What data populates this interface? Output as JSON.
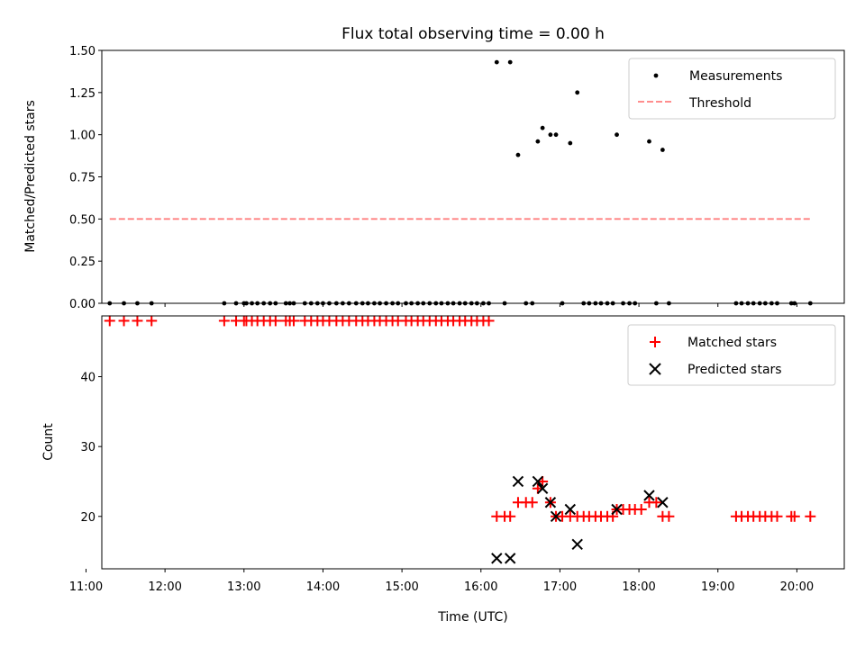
{
  "chart_data": [
    {
      "type": "scatter",
      "title": "Flux total observing time = 0.00 h",
      "xlabel": "",
      "ylabel": "Matched/Predicted stars",
      "xlim": [
        11.2,
        20.6
      ],
      "ylim": [
        0,
        1.5
      ],
      "yticks": [
        "0.00",
        "0.25",
        "0.50",
        "0.75",
        "1.00",
        "1.25",
        "1.50"
      ],
      "legend_position": "top-right",
      "series": [
        {
          "name": "Measurements",
          "style": "dot",
          "color": "#000000",
          "x": [
            11.3,
            11.48,
            11.65,
            11.83,
            12.75,
            12.9,
            13.0,
            13.03,
            13.1,
            13.17,
            13.25,
            13.33,
            13.4,
            13.53,
            13.58,
            13.63,
            13.77,
            13.85,
            13.93,
            14.0,
            14.08,
            14.17,
            14.25,
            14.33,
            14.42,
            14.5,
            14.57,
            14.65,
            14.72,
            14.8,
            14.88,
            14.95,
            15.05,
            15.12,
            15.2,
            15.27,
            15.35,
            15.43,
            15.5,
            15.58,
            15.65,
            15.73,
            15.8,
            15.88,
            15.95,
            16.03,
            16.1,
            16.2,
            16.3,
            16.37,
            16.47,
            16.57,
            16.65,
            16.72,
            16.78,
            16.88,
            16.95,
            17.03,
            17.13,
            17.22,
            17.3,
            17.37,
            17.45,
            17.52,
            17.6,
            17.67,
            17.72,
            17.8,
            17.88,
            17.95,
            18.13,
            18.22,
            18.3,
            18.38,
            19.23,
            19.3,
            19.38,
            19.45,
            19.53,
            19.6,
            19.68,
            19.75,
            19.93,
            19.97,
            20.17
          ],
          "y": [
            0,
            0,
            0,
            0,
            0,
            0,
            0,
            0,
            0,
            0,
            0,
            0,
            0,
            0,
            0,
            0,
            0,
            0,
            0,
            0,
            0,
            0,
            0,
            0,
            0,
            0,
            0,
            0,
            0,
            0,
            0,
            0,
            0,
            0,
            0,
            0,
            0,
            0,
            0,
            0,
            0,
            0,
            0,
            0,
            0,
            0,
            0,
            1.43,
            0,
            1.43,
            0.88,
            0,
            0,
            0.96,
            1.04,
            1.0,
            1.0,
            0,
            0.95,
            1.25,
            0,
            0,
            0,
            0,
            0,
            0,
            1.0,
            0,
            0,
            0,
            0.96,
            0,
            0.91,
            0,
            0,
            0,
            0,
            0,
            0,
            0,
            0,
            0,
            0,
            0,
            0
          ]
        },
        {
          "name": "Threshold",
          "style": "dashed-line",
          "color": "#ff7f7f",
          "x": [
            11.3,
            20.17
          ],
          "y": [
            0.5,
            0.5
          ]
        }
      ]
    },
    {
      "type": "scatter",
      "title": "",
      "xlabel": "Time (UTC)",
      "ylabel": "Count",
      "xlim": [
        11.2,
        20.6
      ],
      "ylim": [
        12.5,
        48.7
      ],
      "yticks": [
        "20",
        "30",
        "40"
      ],
      "xticks": [
        "11:00",
        "12:00",
        "13:00",
        "14:00",
        "15:00",
        "16:00",
        "17:00",
        "18:00",
        "19:00",
        "20:00"
      ],
      "legend_position": "top-right",
      "series": [
        {
          "name": "Matched stars",
          "style": "plus",
          "color": "#ff0000",
          "x": [
            11.3,
            11.48,
            11.65,
            11.83,
            12.75,
            12.9,
            13.0,
            13.03,
            13.1,
            13.17,
            13.25,
            13.33,
            13.4,
            13.53,
            13.58,
            13.63,
            13.77,
            13.85,
            13.93,
            14.0,
            14.08,
            14.17,
            14.25,
            14.33,
            14.42,
            14.5,
            14.57,
            14.65,
            14.72,
            14.8,
            14.88,
            14.95,
            15.05,
            15.12,
            15.2,
            15.27,
            15.35,
            15.43,
            15.5,
            15.58,
            15.65,
            15.73,
            15.8,
            15.88,
            15.95,
            16.03,
            16.1,
            16.2,
            16.3,
            16.37,
            16.47,
            16.57,
            16.65,
            16.72,
            16.78,
            16.88,
            16.95,
            17.03,
            17.13,
            17.22,
            17.3,
            17.37,
            17.45,
            17.52,
            17.6,
            17.67,
            17.72,
            17.8,
            17.88,
            17.95,
            18.03,
            18.13,
            18.22,
            18.3,
            18.38,
            19.23,
            19.3,
            19.38,
            19.45,
            19.53,
            19.6,
            19.68,
            19.75,
            19.93,
            19.97,
            20.17
          ],
          "y": [
            48,
            48,
            48,
            48,
            48,
            48,
            48,
            48,
            48,
            48,
            48,
            48,
            48,
            48,
            48,
            48,
            48,
            48,
            48,
            48,
            48,
            48,
            48,
            48,
            48,
            48,
            48,
            48,
            48,
            48,
            48,
            48,
            48,
            48,
            48,
            48,
            48,
            48,
            48,
            48,
            48,
            48,
            48,
            48,
            48,
            48,
            48,
            20,
            20,
            20,
            22,
            22,
            22,
            24,
            25,
            22,
            20,
            20,
            20,
            20,
            20,
            20,
            20,
            20,
            20,
            20,
            21,
            21,
            21,
            21,
            21,
            22,
            22,
            20,
            20,
            20,
            20,
            20,
            20,
            20,
            20,
            20,
            20,
            20,
            20,
            20
          ]
        },
        {
          "name": "Predicted stars",
          "style": "x",
          "color": "#000000",
          "x": [
            16.2,
            16.37,
            16.47,
            16.72,
            16.78,
            16.88,
            16.95,
            17.13,
            17.22,
            17.72,
            18.13,
            18.3
          ],
          "y": [
            14,
            14,
            25,
            25,
            24,
            22,
            20,
            21,
            16,
            21,
            23,
            22
          ]
        }
      ]
    }
  ]
}
